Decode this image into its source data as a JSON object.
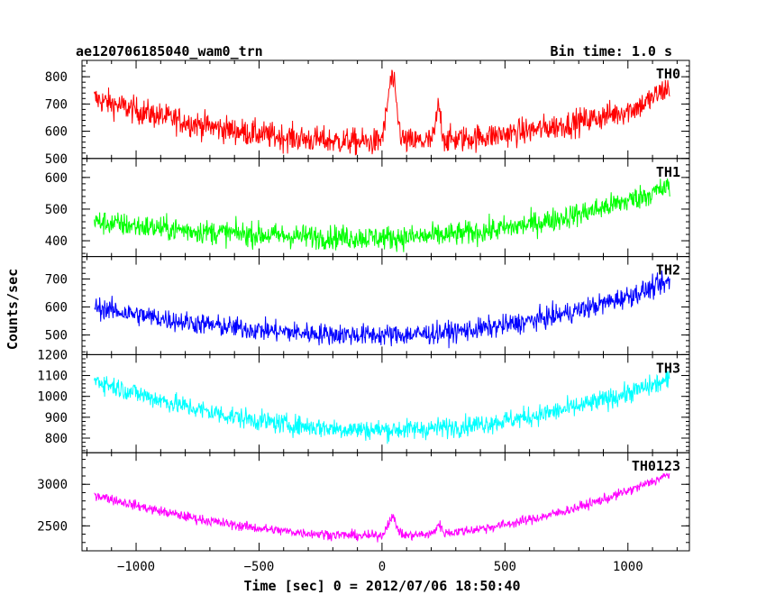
{
  "header": {
    "left": "ae120706185040_wam0_trn",
    "right": "Bin time: 1.0 s"
  },
  "ylabel": "Counts/sec",
  "xlabel": "Time [sec] 0 = 2012/07/06 18:50:40",
  "chart_data": {
    "type": "line",
    "x_range": [
      -1170,
      1170
    ],
    "xlim": [
      -1220,
      1250
    ],
    "x_ticks": [
      -1000,
      -500,
      0,
      500,
      1000
    ],
    "x_tick_labels": [
      "−1000",
      "−500",
      "0",
      "500",
      "1000"
    ],
    "series": [
      {
        "name": "TH0",
        "color": "#ff0000",
        "ylim": [
          500,
          860
        ],
        "y_ticks": [
          500,
          600,
          700,
          800
        ],
        "base_edge": 720,
        "base_center": 560,
        "noise": 45,
        "peaks": [
          [
            40,
            230,
            18
          ],
          [
            230,
            120,
            10
          ],
          [
            1170,
            40,
            60
          ]
        ]
      },
      {
        "name": "TH1",
        "color": "#00ff00",
        "ylim": [
          350,
          660
        ],
        "y_ticks": [
          400,
          500,
          600
        ],
        "base_edge": 460,
        "base_center": 410,
        "right_edge": 570,
        "noise": 35,
        "peaks": []
      },
      {
        "name": "TH2",
        "color": "#0000ff",
        "ylim": [
          430,
          780
        ],
        "y_ticks": [
          500,
          600,
          700
        ],
        "base_edge": 600,
        "base_center": 500,
        "right_edge": 690,
        "noise": 35,
        "peaks": []
      },
      {
        "name": "TH3",
        "color": "#00ffff",
        "ylim": [
          730,
          1200
        ],
        "y_ticks": [
          800,
          900,
          1000,
          1100,
          1200
        ],
        "base_edge": 1080,
        "base_center": 840,
        "right_edge": 1080,
        "noise": 45,
        "peaks": []
      },
      {
        "name": "TH0123",
        "color": "#ff00ff",
        "ylim": [
          2200,
          3380
        ],
        "y_ticks": [
          2500,
          3000
        ],
        "base_edge": 2880,
        "base_center": 2380,
        "right_edge": 3120,
        "noise": 55,
        "peaks": [
          [
            40,
            220,
            18
          ],
          [
            230,
            110,
            10
          ]
        ]
      }
    ]
  }
}
